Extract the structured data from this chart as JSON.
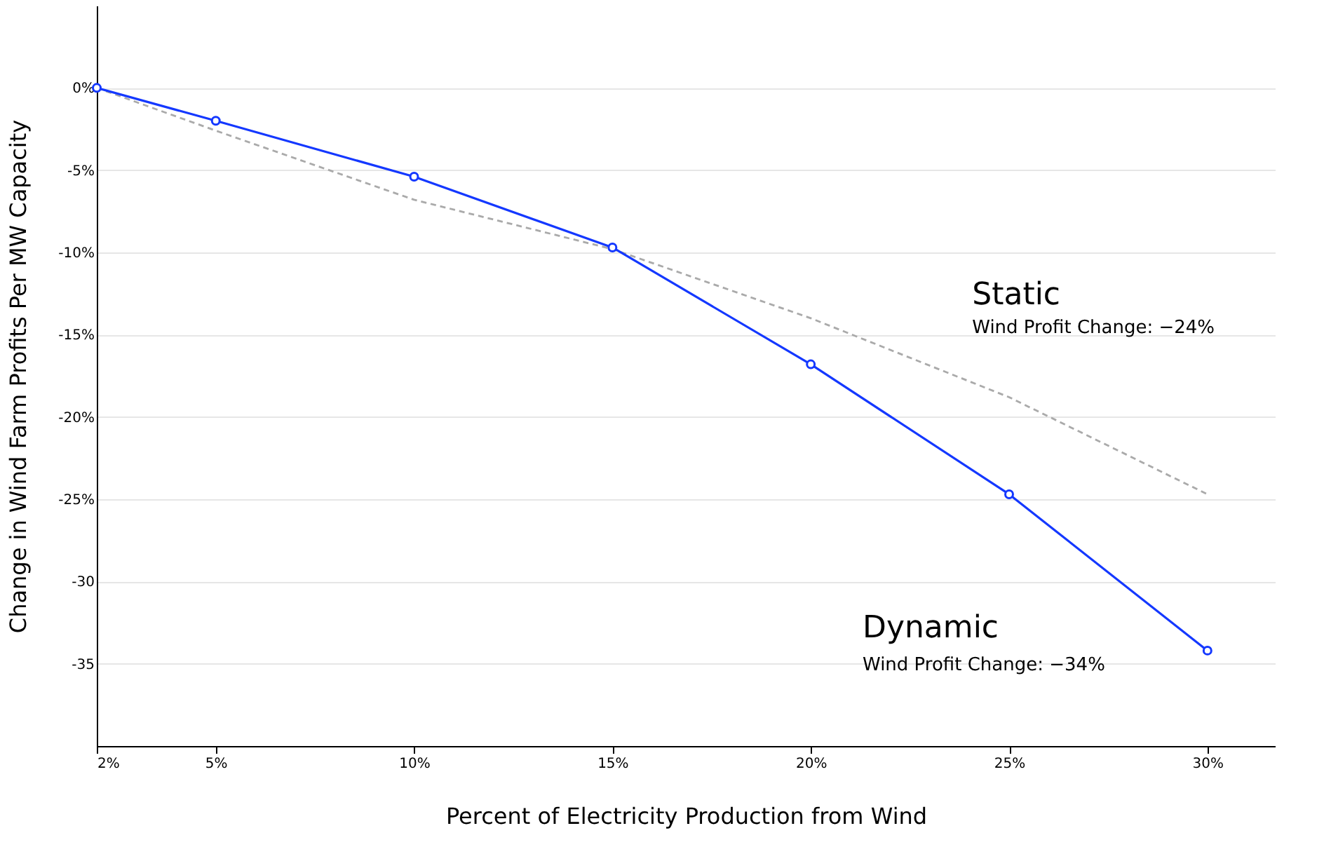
{
  "chart_data": {
    "type": "line",
    "xlabel": "Percent of Electricity Production from Wind",
    "ylabel": "Change in Wind Farm Profits Per MW Capacity",
    "xlim": [
      2,
      31.7
    ],
    "xticks": [
      {
        "value": 2,
        "label": "2%"
      },
      {
        "value": 5,
        "label": "5%"
      },
      {
        "value": 10,
        "label": "10%"
      },
      {
        "value": 15,
        "label": "15%"
      },
      {
        "value": 20,
        "label": "20%"
      },
      {
        "value": 25,
        "label": "25%"
      },
      {
        "value": 30,
        "label": "30%"
      }
    ],
    "ylim": [
      -40,
      5
    ],
    "yticks": [
      {
        "value": 0,
        "label": "0%"
      },
      {
        "value": -5,
        "label": "-5%"
      },
      {
        "value": -10,
        "label": "-10%"
      },
      {
        "value": -15,
        "label": "-15%"
      },
      {
        "value": -20,
        "label": "-20%"
      },
      {
        "value": -25,
        "label": "-25%"
      },
      -30,
      -35
    ],
    "grid": "y",
    "series": [
      {
        "color": "#aaaaaa",
        "line_style": "dashed",
        "marker": "none",
        "x": [
          2,
          5,
          10,
          15,
          20,
          25,
          30
        ],
        "values": [
          0,
          -2.6,
          -6.8,
          -9.8,
          -14.0,
          -18.8,
          -24.7
        ]
      },
      {
        "color": "#1438ff",
        "line_style": "solid",
        "marker": "circle",
        "x": [
          2,
          5,
          10,
          15,
          20,
          25,
          30
        ],
        "values": [
          0,
          -2.0,
          -5.4,
          -9.7,
          -16.8,
          -24.7,
          -34.2
        ]
      }
    ],
    "annotations": [
      "Static",
      "Wind Profit Change:  −24%",
      "Dynamic",
      "Wind Profit Change: −34%"
    ]
  }
}
